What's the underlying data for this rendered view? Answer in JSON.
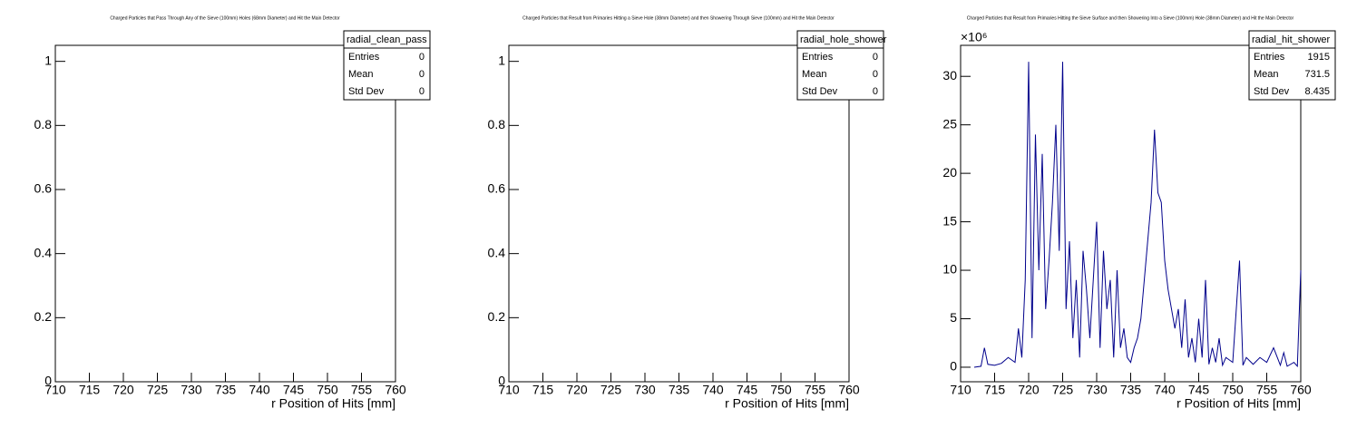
{
  "chart_data": [
    {
      "type": "line",
      "title": "Charged Particles that Pass Through Any of the Sieve (100mm) Holes (68mm Diameter) and Hit the Main Detector",
      "x_label": "r Position of Hits [mm]",
      "xlim": [
        710,
        760
      ],
      "xticks": [
        710,
        715,
        720,
        725,
        730,
        735,
        740,
        745,
        750,
        755,
        760
      ],
      "ylim": [
        0,
        1.05
      ],
      "yticks": [
        0,
        0.2,
        0.4,
        0.6,
        0.8,
        1
      ],
      "x": [],
      "values": [],
      "color": "#00008b",
      "stats": {
        "name": "radial_clean_pass",
        "rows": [
          {
            "label": "Entries",
            "value": 0
          },
          {
            "label": "Mean",
            "value": 0
          },
          {
            "label": "Std Dev",
            "value": 0
          }
        ]
      }
    },
    {
      "type": "line",
      "title": "Charged Particles that Result from Primaries Hitting a Sieve Hole (38mm Diameter) and then Showering Through Sieve (100mm) and Hit the Main Detector",
      "x_label": "r Position of Hits [mm]",
      "xlim": [
        710,
        760
      ],
      "xticks": [
        710,
        715,
        720,
        725,
        730,
        735,
        740,
        745,
        750,
        755,
        760
      ],
      "ylim": [
        0,
        1.05
      ],
      "yticks": [
        0,
        0.2,
        0.4,
        0.6,
        0.8,
        1
      ],
      "x": [],
      "values": [],
      "color": "#00008b",
      "stats": {
        "name": "radial_hole_shower",
        "rows": [
          {
            "label": "Entries",
            "value": 0
          },
          {
            "label": "Mean",
            "value": 0
          },
          {
            "label": "Std Dev",
            "value": 0
          }
        ]
      }
    },
    {
      "type": "line",
      "title": "Charged Particles that Result from Primaries Hitting the Sieve Surface and then Showering Into a Sieve (100mm) Hole (38mm Diameter) and Hit the Main Detector",
      "x_label": "r Position of Hits [mm]",
      "y_exponent": "×10⁶",
      "xlim": [
        710,
        760
      ],
      "xticks": [
        710,
        715,
        720,
        725,
        730,
        735,
        740,
        745,
        750,
        755,
        760
      ],
      "ylim": [
        -1.5,
        33.2
      ],
      "yticks": [
        0,
        5,
        10,
        15,
        20,
        25,
        30
      ],
      "x": [
        712,
        713,
        713.5,
        714,
        715,
        716,
        717,
        718,
        718.5,
        719,
        719.5,
        720,
        720.5,
        721,
        721.5,
        722,
        722.5,
        723,
        723.5,
        724,
        724.5,
        725,
        725.5,
        726,
        726.5,
        727,
        727.5,
        728,
        728.5,
        729,
        729.5,
        730,
        730.5,
        731,
        731.5,
        732,
        732.5,
        733,
        733.5,
        734,
        734.5,
        735,
        735.5,
        736,
        736.5,
        737,
        737.5,
        738,
        738.5,
        739,
        739.5,
        740,
        740.5,
        741,
        741.5,
        742,
        742.5,
        743,
        743.5,
        744,
        744.5,
        745,
        745.5,
        746,
        746.5,
        747,
        747.5,
        748,
        748.5,
        749,
        750,
        751,
        751.5,
        752,
        753,
        754,
        755,
        756,
        757,
        757.5,
        758,
        759,
        759.5,
        760
      ],
      "values": [
        0,
        0.1,
        2,
        0.3,
        0.2,
        0.4,
        1,
        0.5,
        4,
        1,
        9,
        31.5,
        3,
        24,
        10,
        22,
        6,
        11,
        17,
        25,
        12,
        31.5,
        6,
        13,
        3,
        9,
        1,
        12,
        8,
        3,
        9,
        15,
        2,
        12,
        6,
        9,
        1,
        10,
        2,
        4,
        1,
        0.5,
        2,
        3,
        5,
        9,
        13,
        17,
        24.5,
        18,
        17,
        11,
        8,
        6,
        4,
        6,
        2,
        7,
        1,
        3,
        0.5,
        5,
        1,
        9,
        0.3,
        2,
        0.5,
        3,
        0.2,
        1,
        0.5,
        11,
        0.2,
        1,
        0.3,
        1,
        0.5,
        2,
        0.2,
        1.5,
        0.1,
        0.5,
        0.1,
        10
      ],
      "color": "#00008b",
      "stats": {
        "name": "radial_hit_shower",
        "rows": [
          {
            "label": "Entries",
            "value": 1915
          },
          {
            "label": "Mean",
            "value": 731.5
          },
          {
            "label": "Std Dev",
            "value": 8.435
          }
        ]
      }
    }
  ]
}
